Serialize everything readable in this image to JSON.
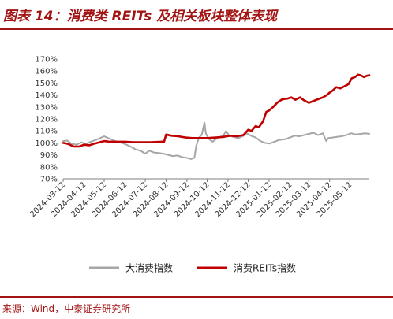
{
  "header": {
    "title": "图表 14：消费类 REITs 及相关板块整体表现"
  },
  "footer": {
    "source": "来源：Wind，中泰证券研究所"
  },
  "chart_data": {
    "type": "line",
    "title": "",
    "xlabel": "",
    "ylabel": "",
    "ylim": [
      70,
      170
    ],
    "yticks": [
      70,
      80,
      90,
      100,
      110,
      120,
      130,
      140,
      150,
      160,
      170
    ],
    "ytick_labels": [
      "70%",
      "80%",
      "90%",
      "100%",
      "110%",
      "120%",
      "130%",
      "140%",
      "150%",
      "160%",
      "170%"
    ],
    "xticks": [
      "2024-03-12",
      "2024-04-12",
      "2024-05-12",
      "2024-06-12",
      "2024-07-12",
      "2024-08-12",
      "2024-09-12",
      "2024-10-12",
      "2024-11-12",
      "2024-12-12",
      "2025-01-12",
      "2025-02-12",
      "2025-03-12",
      "2025-04-12",
      "2025-05-12"
    ],
    "xrange": [
      "2024-03-12",
      "2025-06-10"
    ],
    "grid": false,
    "legend_position": "bottom",
    "series": [
      {
        "name": "大消费指数",
        "color": "#a6a6a6",
        "points": [
          [
            "2024-03-12",
            101.5
          ],
          [
            "2024-03-18",
            102
          ],
          [
            "2024-03-24",
            99.5
          ],
          [
            "2024-04-01",
            98.5
          ],
          [
            "2024-04-08",
            100.5
          ],
          [
            "2024-04-14",
            99
          ],
          [
            "2024-04-22",
            101
          ],
          [
            "2024-04-30",
            102.5
          ],
          [
            "2024-05-06",
            104
          ],
          [
            "2024-05-12",
            105.5
          ],
          [
            "2024-05-16",
            104.5
          ],
          [
            "2024-05-22",
            103
          ],
          [
            "2024-05-28",
            101.5
          ],
          [
            "2024-06-04",
            100.5
          ],
          [
            "2024-06-12",
            99
          ],
          [
            "2024-06-20",
            97
          ],
          [
            "2024-06-28",
            94.5
          ],
          [
            "2024-07-05",
            93.5
          ],
          [
            "2024-07-12",
            91
          ],
          [
            "2024-07-18",
            93.5
          ],
          [
            "2024-07-25",
            92
          ],
          [
            "2024-08-01",
            91.5
          ],
          [
            "2024-08-08",
            91
          ],
          [
            "2024-08-15",
            90
          ],
          [
            "2024-08-22",
            89
          ],
          [
            "2024-08-29",
            89.5
          ],
          [
            "2024-09-05",
            88
          ],
          [
            "2024-09-12",
            87.5
          ],
          [
            "2024-09-18",
            86.5
          ],
          [
            "2024-09-23",
            87.5
          ],
          [
            "2024-09-26",
            98
          ],
          [
            "2024-09-30",
            104.5
          ],
          [
            "2024-10-04",
            107
          ],
          [
            "2024-10-08",
            117
          ],
          [
            "2024-10-10",
            108
          ],
          [
            "2024-10-14",
            103.5
          ],
          [
            "2024-10-20",
            101
          ],
          [
            "2024-10-27",
            104
          ],
          [
            "2024-11-05",
            106
          ],
          [
            "2024-11-09",
            110
          ],
          [
            "2024-11-14",
            106
          ],
          [
            "2024-11-20",
            105
          ],
          [
            "2024-11-27",
            104
          ],
          [
            "2024-12-04",
            105.5
          ],
          [
            "2024-12-10",
            108
          ],
          [
            "2024-12-16",
            106
          ],
          [
            "2024-12-23",
            104.5
          ],
          [
            "2024-12-30",
            101.5
          ],
          [
            "2025-01-06",
            100
          ],
          [
            "2025-01-13",
            99.5
          ],
          [
            "2025-01-20",
            101
          ],
          [
            "2025-01-27",
            102.5
          ],
          [
            "2025-02-05",
            103
          ],
          [
            "2025-02-12",
            104.5
          ],
          [
            "2025-02-19",
            106
          ],
          [
            "2025-02-26",
            105.5
          ],
          [
            "2025-03-05",
            106.5
          ],
          [
            "2025-03-12",
            107.5
          ],
          [
            "2025-03-19",
            108.5
          ],
          [
            "2025-03-26",
            106.5
          ],
          [
            "2025-04-02",
            108
          ],
          [
            "2025-04-07",
            101.5
          ],
          [
            "2025-04-10",
            104
          ],
          [
            "2025-04-16",
            104.5
          ],
          [
            "2025-04-23",
            105
          ],
          [
            "2025-04-30",
            105.5
          ],
          [
            "2025-05-07",
            106.5
          ],
          [
            "2025-05-14",
            108
          ],
          [
            "2025-05-21",
            107
          ],
          [
            "2025-05-28",
            107.5
          ],
          [
            "2025-06-04",
            108
          ],
          [
            "2025-06-10",
            107.5
          ]
        ]
      },
      {
        "name": "消费REITs指数",
        "color": "#c00000",
        "points": [
          [
            "2024-03-12",
            100
          ],
          [
            "2024-03-20",
            99
          ],
          [
            "2024-03-28",
            97
          ],
          [
            "2024-04-05",
            97
          ],
          [
            "2024-04-12",
            98.5
          ],
          [
            "2024-04-20",
            98
          ],
          [
            "2024-04-28",
            99.5
          ],
          [
            "2024-05-05",
            100.5
          ],
          [
            "2024-05-12",
            101.5
          ],
          [
            "2024-05-20",
            101
          ],
          [
            "2024-06-01",
            101
          ],
          [
            "2024-06-12",
            101
          ],
          [
            "2024-06-24",
            100.5
          ],
          [
            "2024-07-05",
            100.5
          ],
          [
            "2024-07-20",
            100.5
          ],
          [
            "2024-08-05",
            101
          ],
          [
            "2024-08-09",
            101
          ],
          [
            "2024-08-12",
            107
          ],
          [
            "2024-08-20",
            106
          ],
          [
            "2024-08-30",
            105.5
          ],
          [
            "2024-09-10",
            104.5
          ],
          [
            "2024-09-20",
            104
          ],
          [
            "2024-10-01",
            104
          ],
          [
            "2024-10-12",
            104
          ],
          [
            "2024-10-25",
            104.5
          ],
          [
            "2024-11-05",
            105
          ],
          [
            "2024-11-15",
            106
          ],
          [
            "2024-11-25",
            105.5
          ],
          [
            "2024-12-05",
            106.5
          ],
          [
            "2024-12-12",
            111
          ],
          [
            "2024-12-17",
            110
          ],
          [
            "2024-12-23",
            114
          ],
          [
            "2024-12-28",
            113
          ],
          [
            "2025-01-03",
            118
          ],
          [
            "2025-01-08",
            126
          ],
          [
            "2025-01-12",
            127
          ],
          [
            "2025-01-18",
            130
          ],
          [
            "2025-01-25",
            134
          ],
          [
            "2025-02-01",
            136.5
          ],
          [
            "2025-02-08",
            137
          ],
          [
            "2025-02-14",
            138
          ],
          [
            "2025-02-20",
            136
          ],
          [
            "2025-02-27",
            138
          ],
          [
            "2025-03-05",
            135.5
          ],
          [
            "2025-03-12",
            133.5
          ],
          [
            "2025-03-19",
            135
          ],
          [
            "2025-03-26",
            136.5
          ],
          [
            "2025-04-02",
            138
          ],
          [
            "2025-04-08",
            140
          ],
          [
            "2025-04-12",
            142
          ],
          [
            "2025-04-16",
            143.5
          ],
          [
            "2025-04-22",
            146.5
          ],
          [
            "2025-04-28",
            145.5
          ],
          [
            "2025-05-05",
            147.5
          ],
          [
            "2025-05-10",
            149
          ],
          [
            "2025-05-15",
            154
          ],
          [
            "2025-05-20",
            155
          ],
          [
            "2025-05-24",
            157
          ],
          [
            "2025-05-28",
            156.5
          ],
          [
            "2025-06-02",
            155
          ],
          [
            "2025-06-06",
            156
          ],
          [
            "2025-06-10",
            156.5
          ]
        ]
      }
    ]
  }
}
